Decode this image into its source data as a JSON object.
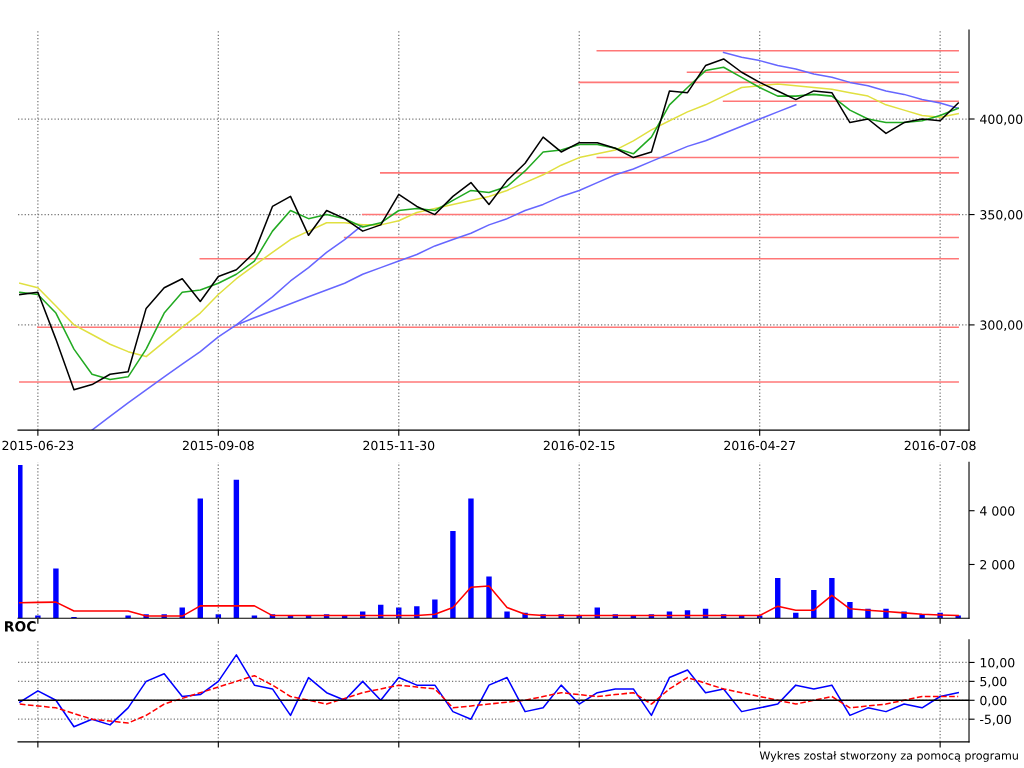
{
  "chart_data": [
    {
      "type": "line",
      "log": "y",
      "grid": true,
      "categories": [
        null,
        "2015-06-23",
        null,
        null,
        null,
        null,
        null,
        null,
        null,
        null,
        null,
        "2015-09-08",
        null,
        null,
        null,
        null,
        null,
        null,
        null,
        null,
        null,
        "2015-11-30",
        null,
        null,
        null,
        null,
        null,
        null,
        null,
        null,
        null,
        "2016-02-15",
        null,
        null,
        null,
        null,
        null,
        null,
        null,
        null,
        null,
        "2016-04-27",
        null,
        null,
        null,
        null,
        null,
        null,
        null,
        null,
        null,
        "2016-07-08",
        null
      ],
      "ylim": [
        259,
        453
      ],
      "yticks": [
        {
          "value": 300,
          "label": "300,00"
        },
        {
          "value": 350,
          "label": "350,00"
        },
        {
          "value": 400,
          "label": "400,00"
        }
      ],
      "series": [
        {
          "color": "#ff7777",
          "values": [
            277,
            277,
            277,
            277,
            277,
            277,
            277,
            277,
            277,
            277,
            277,
            277,
            277,
            277,
            277,
            277,
            277,
            277,
            277,
            277,
            277,
            277,
            277,
            277,
            277,
            277,
            277,
            277,
            277,
            277,
            277,
            277,
            277,
            277,
            277,
            277,
            277,
            277,
            277,
            277,
            277,
            277,
            277,
            277,
            277,
            277,
            277,
            277,
            277,
            277,
            277,
            277,
            277
          ]
        },
        {
          "color": "#ff7777",
          "values": [
            null,
            299,
            299,
            299,
            299,
            299,
            299,
            299,
            299,
            299,
            299,
            299,
            299,
            299,
            299,
            299,
            299,
            299,
            299,
            299,
            299,
            299,
            299,
            299,
            299,
            299,
            299,
            299,
            299,
            299,
            299,
            299,
            299,
            299,
            299,
            299,
            299,
            299,
            299,
            299,
            299,
            299,
            299,
            299,
            299,
            299,
            299,
            299,
            299,
            299,
            299,
            299,
            299
          ]
        },
        {
          "color": "#ff7777",
          "values": [
            null,
            null,
            null,
            null,
            null,
            null,
            null,
            null,
            null,
            null,
            329,
            329,
            329,
            329,
            329,
            329,
            329,
            329,
            329,
            329,
            329,
            329,
            329,
            329,
            329,
            329,
            329,
            329,
            329,
            329,
            329,
            329,
            329,
            329,
            329,
            329,
            329,
            329,
            329,
            329,
            329,
            329,
            329,
            329,
            329,
            329,
            329,
            329,
            329,
            329,
            329,
            329,
            329
          ]
        },
        {
          "color": "#ff7777",
          "values": [
            null,
            null,
            null,
            null,
            null,
            null,
            null,
            null,
            null,
            null,
            null,
            null,
            null,
            null,
            null,
            null,
            null,
            null,
            339,
            339,
            339,
            339,
            339,
            339,
            339,
            339,
            339,
            339,
            339,
            339,
            339,
            339,
            339,
            339,
            339,
            339,
            339,
            339,
            339,
            339,
            339,
            339,
            339,
            339,
            339,
            339,
            339,
            339,
            339,
            339,
            339,
            339,
            339
          ]
        },
        {
          "color": "#ff7777",
          "values": [
            null,
            null,
            null,
            null,
            null,
            null,
            null,
            null,
            null,
            null,
            null,
            null,
            null,
            null,
            null,
            null,
            null,
            null,
            null,
            350,
            350,
            350,
            350,
            350,
            350,
            350,
            350,
            350,
            350,
            350,
            350,
            350,
            350,
            350,
            350,
            350,
            350,
            350,
            350,
            350,
            350,
            350,
            350,
            350,
            350,
            350,
            350,
            350,
            350,
            350,
            350,
            350,
            350
          ]
        },
        {
          "color": "#ff7777",
          "values": [
            null,
            null,
            null,
            null,
            null,
            null,
            null,
            null,
            null,
            null,
            null,
            null,
            null,
            null,
            null,
            null,
            null,
            null,
            null,
            null,
            371,
            371,
            371,
            371,
            371,
            371,
            371,
            371,
            371,
            371,
            371,
            371,
            371,
            371,
            371,
            371,
            371,
            371,
            371,
            371,
            371,
            371,
            371,
            371,
            371,
            371,
            371,
            371,
            371,
            371,
            371,
            371,
            371
          ]
        },
        {
          "color": "#ff7777",
          "values": [
            null,
            null,
            null,
            null,
            null,
            null,
            null,
            null,
            null,
            null,
            null,
            null,
            null,
            null,
            null,
            null,
            null,
            null,
            null,
            null,
            null,
            null,
            null,
            null,
            null,
            null,
            null,
            null,
            null,
            null,
            null,
            null,
            379,
            379,
            379,
            379,
            379,
            379,
            379,
            379,
            379,
            379,
            379,
            379,
            379,
            379,
            379,
            379,
            379,
            379,
            379,
            379,
            379
          ]
        },
        {
          "color": "#ff7777",
          "values": [
            null,
            null,
            null,
            null,
            null,
            null,
            null,
            null,
            null,
            null,
            null,
            null,
            null,
            null,
            null,
            null,
            null,
            null,
            null,
            null,
            null,
            null,
            null,
            null,
            null,
            null,
            null,
            null,
            null,
            null,
            null,
            null,
            null,
            null,
            null,
            null,
            null,
            null,
            null,
            410,
            410,
            410,
            410,
            410,
            410,
            410,
            410,
            410,
            410,
            410,
            410,
            410,
            410
          ]
        },
        {
          "color": "#ff7777",
          "values": [
            null,
            null,
            null,
            null,
            null,
            null,
            null,
            null,
            null,
            null,
            null,
            null,
            null,
            null,
            null,
            null,
            null,
            null,
            null,
            null,
            null,
            null,
            null,
            null,
            null,
            null,
            null,
            null,
            null,
            null,
            null,
            421,
            421,
            421,
            421,
            421,
            421,
            421,
            421,
            421,
            421,
            421,
            421,
            421,
            421,
            421,
            421,
            421,
            421,
            421,
            421,
            421,
            421
          ]
        },
        {
          "color": "#ff7777",
          "values": [
            null,
            null,
            null,
            null,
            null,
            null,
            null,
            null,
            null,
            null,
            null,
            null,
            null,
            null,
            null,
            null,
            null,
            null,
            null,
            null,
            null,
            null,
            null,
            null,
            null,
            null,
            null,
            null,
            null,
            null,
            null,
            null,
            null,
            null,
            null,
            null,
            null,
            427,
            427,
            427,
            427,
            427,
            427,
            427,
            427,
            427,
            427,
            427,
            427,
            427,
            427,
            427,
            427
          ]
        },
        {
          "color": "#ff7777",
          "values": [
            null,
            null,
            null,
            null,
            null,
            null,
            null,
            null,
            null,
            null,
            null,
            null,
            null,
            null,
            null,
            null,
            null,
            null,
            null,
            null,
            null,
            null,
            null,
            null,
            null,
            null,
            null,
            null,
            null,
            null,
            null,
            null,
            440,
            440,
            440,
            440,
            440,
            440,
            440,
            440,
            440,
            440,
            440,
            440,
            440,
            440,
            440,
            440,
            440,
            440,
            440,
            440,
            440
          ]
        },
        {
          "color": "#6666ff",
          "values": [
            null,
            null,
            null,
            null,
            259,
            264,
            269,
            274,
            279,
            284,
            289,
            295,
            300,
            306,
            312,
            319,
            325,
            332,
            338,
            345,
            null,
            null,
            null,
            null,
            null,
            null,
            null,
            null,
            null,
            null,
            null,
            null,
            null,
            null,
            null,
            null,
            null,
            null,
            null,
            null,
            null,
            null,
            null,
            null,
            null,
            null,
            null,
            null,
            null,
            null,
            null,
            null,
            null
          ]
        },
        {
          "color": "#6666ff",
          "values": [
            null,
            null,
            null,
            null,
            null,
            null,
            null,
            null,
            null,
            null,
            null,
            null,
            300,
            303,
            306,
            309,
            312,
            315,
            318,
            322,
            325,
            328,
            331,
            335,
            338,
            341,
            345,
            348,
            352,
            355,
            359,
            362,
            366,
            370,
            373,
            377,
            381,
            385,
            388,
            392,
            396,
            400,
            404,
            408,
            null,
            null,
            null,
            null,
            null,
            null,
            null,
            null,
            null
          ]
        },
        {
          "color": "#6666ff",
          "values": [
            null,
            null,
            null,
            null,
            null,
            null,
            null,
            null,
            null,
            null,
            null,
            null,
            null,
            null,
            null,
            null,
            null,
            null,
            null,
            null,
            null,
            null,
            null,
            null,
            null,
            null,
            null,
            null,
            null,
            null,
            null,
            null,
            null,
            null,
            null,
            null,
            null,
            null,
            null,
            439,
            436,
            434,
            431,
            429,
            426,
            424,
            421,
            419,
            416,
            414,
            411,
            409,
            406
          ]
        },
        {
          "color": "#e0e040",
          "values": [
            318,
            316,
            308,
            300,
            296,
            292,
            289,
            287,
            293,
            299,
            305,
            313,
            320,
            326,
            332,
            338,
            342,
            346,
            346,
            345,
            345,
            347,
            351,
            353,
            355,
            357,
            359,
            362,
            366,
            370,
            375,
            379,
            381,
            383,
            388,
            394,
            399,
            404,
            408,
            413,
            418,
            419,
            420,
            419,
            418,
            417,
            415,
            413,
            408,
            405,
            402,
            401,
            403
          ]
        },
        {
          "color": "#22aa22",
          "values": [
            314,
            313,
            305,
            290,
            280,
            278,
            279,
            290,
            305,
            314,
            315,
            318,
            322,
            328,
            342,
            352,
            348,
            350,
            348,
            344,
            346,
            352,
            353,
            352,
            357,
            362,
            361,
            364,
            372,
            382,
            383,
            386,
            386,
            384,
            381,
            390,
            408,
            418,
            428,
            430,
            424,
            418,
            413,
            413,
            414,
            413,
            405,
            400,
            398,
            398,
            399,
            402,
            406
          ]
        },
        {
          "color": "#000000",
          "values": [
            313,
            314,
            294,
            274,
            276,
            280,
            281,
            307,
            316,
            320,
            310,
            321,
            324,
            332,
            354,
            359,
            340,
            352,
            348,
            342,
            345,
            360,
            354,
            350,
            359,
            366,
            355,
            367,
            376,
            390,
            382,
            387,
            387,
            384,
            379,
            382,
            416,
            415,
            431,
            435,
            427,
            421,
            416,
            411,
            416,
            415,
            398,
            400,
            392,
            398,
            400,
            399,
            409
          ]
        }
      ]
    },
    {
      "type": "bar",
      "grid": "x",
      "tick_labels": "y",
      "categories": [
        null,
        "2015-06-23",
        null,
        null,
        null,
        null,
        null,
        null,
        null,
        null,
        null,
        "2015-09-08",
        null,
        null,
        null,
        null,
        null,
        null,
        null,
        null,
        null,
        "2015-11-30",
        null,
        null,
        null,
        null,
        null,
        null,
        null,
        null,
        null,
        "2016-02-15",
        null,
        null,
        null,
        null,
        null,
        null,
        null,
        null,
        null,
        "2016-04-27",
        null,
        null,
        null,
        null,
        null,
        null,
        null,
        null,
        null,
        "2016-07-08",
        null
      ],
      "ylim": [
        0,
        5800
      ],
      "yticks": [
        {
          "value": 2000,
          "label": "2 000"
        },
        {
          "value": 4000,
          "label": "4 000"
        }
      ],
      "series": [
        {
          "color": "#0000ff",
          "values": [
            5700,
            100,
            1850,
            50,
            null,
            null,
            100,
            150,
            150,
            400,
            4450,
            150,
            5150,
            100,
            150,
            100,
            100,
            150,
            100,
            250,
            500,
            400,
            450,
            700,
            3250,
            4450,
            1550,
            250,
            200,
            150,
            150,
            100,
            400,
            150,
            100,
            150,
            250,
            300,
            350,
            150,
            100,
            100,
            1500,
            200,
            1050,
            1500,
            600,
            350,
            350,
            250,
            150,
            200,
            100
          ]
        },
        {
          "type": "line",
          "color": "#ff0000",
          "values": [
            580,
            590,
            600,
            270,
            270,
            270,
            270,
            80,
            80,
            80,
            460,
            460,
            460,
            460,
            100,
            100,
            100,
            100,
            100,
            100,
            100,
            100,
            100,
            150,
            400,
            1150,
            1200,
            400,
            150,
            100,
            100,
            100,
            100,
            100,
            100,
            100,
            100,
            100,
            100,
            100,
            100,
            100,
            450,
            300,
            300,
            850,
            350,
            300,
            250,
            200,
            150,
            120,
            100
          ]
        }
      ]
    },
    {
      "type": "line",
      "title": "ROC",
      "grid": true,
      "tick_labels": "y",
      "categories": [
        null,
        "2015-06-23",
        null,
        null,
        null,
        null,
        null,
        null,
        null,
        null,
        null,
        "2015-09-08",
        null,
        null,
        null,
        null,
        null,
        null,
        null,
        null,
        null,
        "2015-11-30",
        null,
        null,
        null,
        null,
        null,
        null,
        null,
        null,
        null,
        "2016-02-15",
        null,
        null,
        null,
        null,
        null,
        null,
        null,
        null,
        null,
        "2016-04-27",
        null,
        null,
        null,
        null,
        null,
        null,
        null,
        null,
        null,
        "2016-07-08",
        null
      ],
      "ylim": [
        -11,
        16
      ],
      "yticks": [
        {
          "value": -5,
          "label": "-5,00"
        },
        {
          "value": 0,
          "label": "0,00"
        },
        {
          "value": 5,
          "label": "5,00"
        },
        {
          "value": 10,
          "label": "10,00"
        }
      ],
      "ref_lines": [
        {
          "axis": "y",
          "value": 0,
          "color": "#000000"
        }
      ],
      "series": [
        {
          "color": "#0000ff",
          "values": [
            -0.5,
            2.5,
            0,
            -7,
            -5,
            -6.5,
            -2,
            5,
            7,
            1,
            1.5,
            5,
            12,
            4,
            3,
            -4,
            6,
            2,
            0,
            5,
            0,
            6,
            4,
            4,
            -3,
            -5,
            4,
            6,
            -3,
            -2,
            4,
            -1,
            2,
            3,
            3,
            -4,
            6,
            8,
            2,
            3,
            -3,
            -2,
            -1,
            4,
            3,
            4,
            -4,
            -2,
            -3,
            -1,
            -2,
            1,
            2
          ]
        },
        {
          "color": "#ff0000",
          "line_style": "dashed",
          "values": [
            -1,
            -1.5,
            -2,
            -3.5,
            -5,
            -5.5,
            -6,
            -4,
            -1,
            0.5,
            2,
            3.5,
            5,
            6.5,
            4,
            1,
            0,
            -1,
            0.5,
            2,
            3,
            4,
            3.5,
            3,
            -2,
            -1.5,
            -1,
            -0.5,
            0,
            1,
            2,
            1.5,
            1,
            1.5,
            2,
            -1,
            3,
            6,
            4.5,
            3,
            2,
            1,
            0,
            -1,
            0,
            1,
            -2,
            -1.5,
            -1,
            0,
            1,
            1,
            1
          ]
        }
      ],
      "annotations": [
        "Wykres został stworzony za pomocą programu"
      ]
    }
  ]
}
